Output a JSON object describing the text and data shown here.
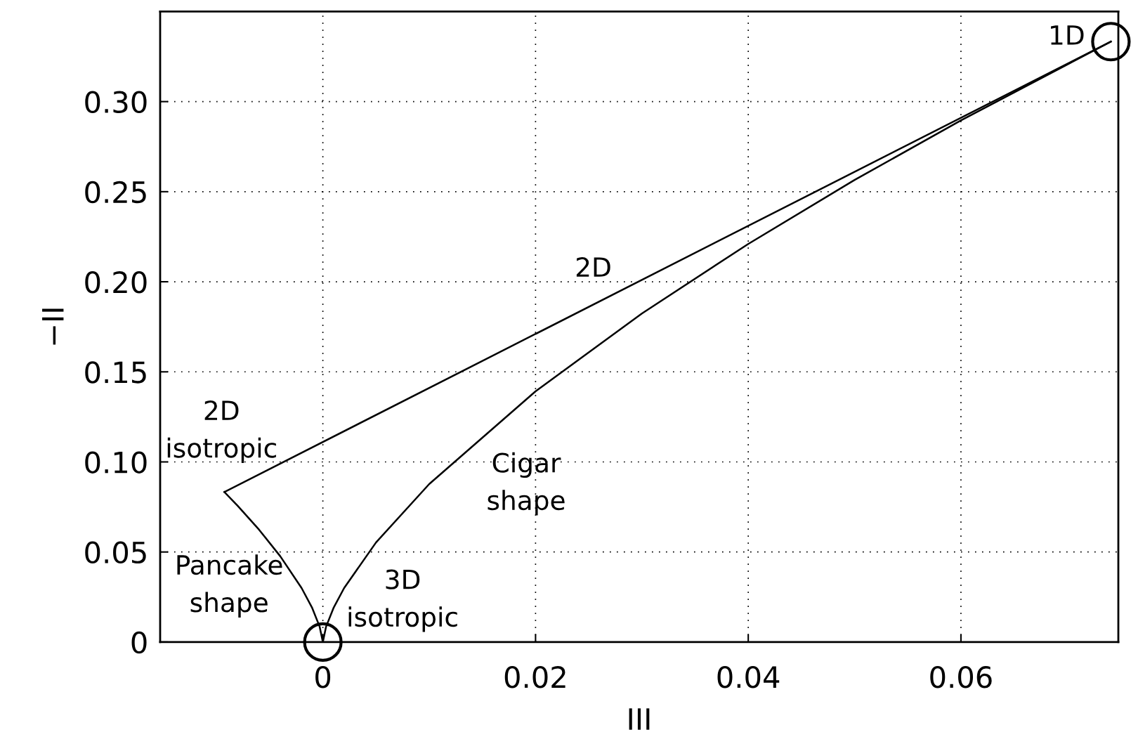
{
  "chart_data": {
    "type": "line",
    "xlabel": "III",
    "ylabel": "−II",
    "xlim": [
      -0.0153,
      0.0748
    ],
    "ylim": [
      0,
      0.35
    ],
    "xticks": [
      0,
      0.02,
      0.04,
      0.06
    ],
    "yticks": [
      0,
      0.05,
      {
        "value": 0.1,
        "label": "0.10"
      },
      0.15,
      {
        "value": 0.2,
        "label": "0.20"
      },
      0.25,
      {
        "value": 0.3,
        "label": "0.30"
      }
    ],
    "grid": true,
    "line_style": "solid",
    "marker": "none",
    "series": [
      {
        "color": "#000000",
        "x": [
          -0.00926,
          0.0741
        ],
        "values": [
          0.0833,
          0.3333
        ]
      },
      {
        "color": "#000000",
        "x": [
          -0.00926,
          -0.008,
          -0.006,
          -0.004,
          -0.002,
          -0.001,
          -0.0003,
          0,
          0.0003,
          0.001,
          0.002,
          0.005,
          0.01,
          0.02,
          0.03,
          0.04,
          0.05,
          0.06,
          0.0741
        ],
        "values": [
          0.0833,
          0.0756,
          0.0624,
          0.0476,
          0.03,
          0.0189,
          0.0085,
          0,
          0.0085,
          0.0189,
          0.03,
          0.0553,
          0.0877,
          0.1392,
          0.1824,
          0.221,
          0.2565,
          0.2896,
          0.3333
        ]
      },
      {
        "type": "scatter",
        "marker": "circle",
        "color": "#000000",
        "x": [
          0,
          0.0741
        ],
        "values": [
          0,
          0.3333
        ]
      }
    ],
    "annotations": [
      "1D",
      "2D",
      "2D\nisotropic",
      "Cigar\nshape",
      "Pancake\nshape",
      "3D\nisotropic"
    ]
  }
}
